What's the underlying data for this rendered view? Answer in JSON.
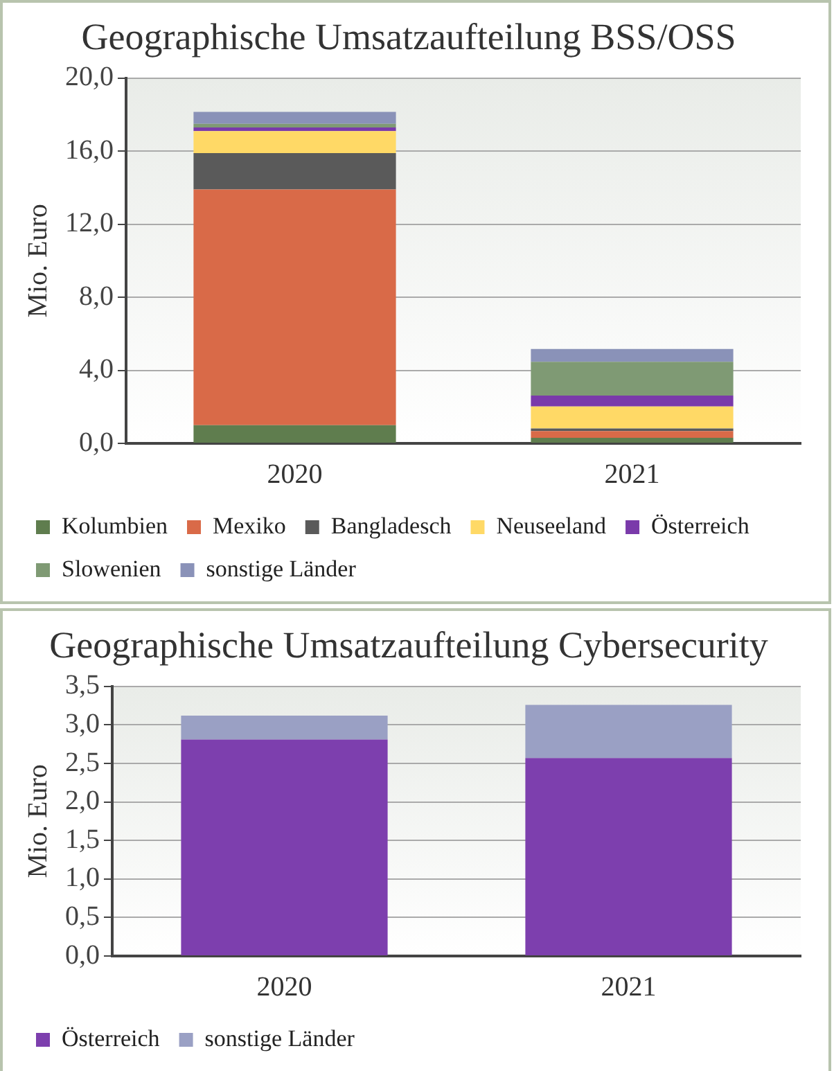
{
  "chart_data": [
    {
      "type": "bar",
      "title": "Geographische Umsatzaufteilung BSS/OSS",
      "ylabel": "Mio. Euro",
      "categories": [
        "2020",
        "2021"
      ],
      "stacked": true,
      "series": [
        {
          "name": "Kolumbien",
          "color": "#5f7d4e",
          "values": [
            1.0,
            0.3
          ]
        },
        {
          "name": "Mexiko",
          "color": "#d96a48",
          "values": [
            12.9,
            0.37
          ]
        },
        {
          "name": "Bangladesch",
          "color": "#5a5a5a",
          "values": [
            2.0,
            0.15
          ]
        },
        {
          "name": "Neuseeland",
          "color": "#ffd966",
          "values": [
            1.2,
            1.2
          ]
        },
        {
          "name": "Österreich",
          "color": "#7a3aaa",
          "values": [
            0.2,
            0.6
          ]
        },
        {
          "name": "Slowenien",
          "color": "#7f9a74",
          "values": [
            0.2,
            1.85
          ]
        },
        {
          "name": "sonstige Länder",
          "color": "#8a92b8",
          "values": [
            0.65,
            0.7
          ]
        }
      ],
      "ylim": [
        0,
        20
      ],
      "yticks": [
        {
          "value": 0,
          "label": "0,0"
        },
        {
          "value": 4,
          "label": "4,0"
        },
        {
          "value": 8,
          "label": "8,0"
        },
        {
          "value": 12,
          "label": "12,0"
        },
        {
          "value": 16,
          "label": "16,0"
        },
        {
          "value": 20,
          "label": "20,0"
        }
      ],
      "grid": "y",
      "legend": "bottom"
    },
    {
      "type": "bar",
      "title": "Geographische Umsatzaufteilung Cybersecurity",
      "ylabel": "Mio. Euro",
      "categories": [
        "2020",
        "2021"
      ],
      "stacked": true,
      "series": [
        {
          "name": "Österreich",
          "color": "#7d3fae",
          "values": [
            2.81,
            2.57
          ]
        },
        {
          "name": "sonstige Länder",
          "color": "#9aa0c4",
          "values": [
            0.31,
            0.69
          ]
        }
      ],
      "ylim": [
        0,
        3.5
      ],
      "yticks": [
        {
          "value": 0,
          "label": "0,0"
        },
        {
          "value": 0.5,
          "label": "0,5"
        },
        {
          "value": 1,
          "label": "1,0"
        },
        {
          "value": 1.5,
          "label": "1,5"
        },
        {
          "value": 2,
          "label": "2,0"
        },
        {
          "value": 2.5,
          "label": "2,5"
        },
        {
          "value": 3,
          "label": "3,0"
        },
        {
          "value": 3.5,
          "label": "3,5"
        }
      ],
      "grid": "y",
      "legend": "bottom"
    }
  ]
}
